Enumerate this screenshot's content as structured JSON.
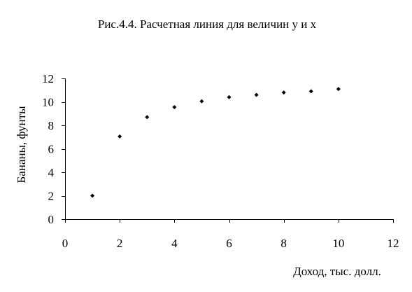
{
  "chart_data": {
    "type": "scatter",
    "title": "Рис.4.4. Расчетная линия для величин y и x",
    "xlabel": "Доход, тыс. долл.",
    "ylabel": "Бананы, фунты",
    "xlim": [
      0,
      12
    ],
    "ylim": [
      0,
      12
    ],
    "xticks": [
      "0",
      "2",
      "4",
      "6",
      "8",
      "10",
      "12"
    ],
    "yticks": [
      "0",
      "2",
      "4",
      "6",
      "8",
      "10",
      "12"
    ],
    "grid": false,
    "legend": "none",
    "marker": "diamond",
    "marker_color": "#000000",
    "points": [
      {
        "x": 1,
        "y": 2.0
      },
      {
        "x": 2,
        "y": 7.05
      },
      {
        "x": 3,
        "y": 8.7
      },
      {
        "x": 4,
        "y": 9.55
      },
      {
        "x": 5,
        "y": 10.05
      },
      {
        "x": 6,
        "y": 10.4
      },
      {
        "x": 7,
        "y": 10.6
      },
      {
        "x": 8,
        "y": 10.8
      },
      {
        "x": 9,
        "y": 10.9
      },
      {
        "x": 10,
        "y": 11.1
      }
    ]
  }
}
